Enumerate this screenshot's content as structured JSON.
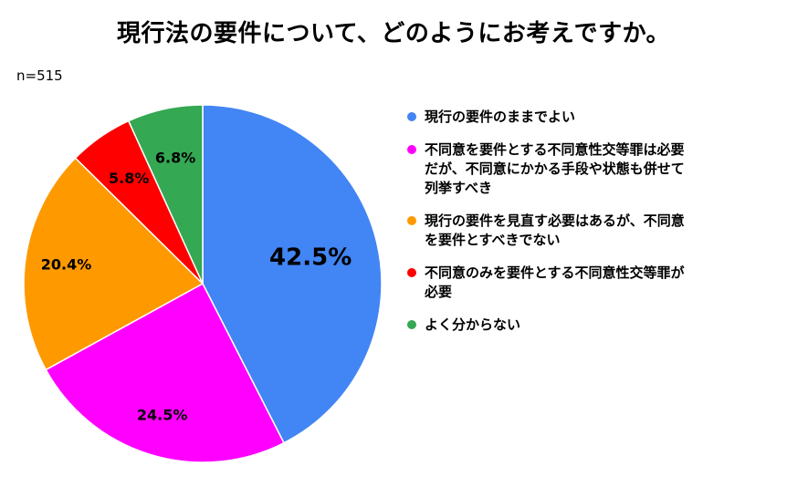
{
  "chart_data": {
    "type": "pie",
    "title": "現行法の要件について、どのようにお考えですか。",
    "note": "n=515",
    "categories": [
      "現行の要件のままでよい",
      "不同意を要件とする不同意性交等罪は必要\nだが、不同意にかかる手段や状態も併せて\n列挙すべき",
      "現行の要件を見直す必要はあるが、不同意\nを要件とすべきでない",
      "不同意のみを要件とする不同意性交等罪が\n必要",
      "よく分からない"
    ],
    "values": [
      42.5,
      24.5,
      20.4,
      5.8,
      6.8
    ],
    "data_labels": [
      "42.5%",
      "24.5%",
      "20.4%",
      "5.8%",
      "6.8%"
    ],
    "colors": [
      "#4285F4",
      "#FF00FF",
      "#FF9900",
      "#FF0000",
      "#34A853"
    ],
    "legend": "right"
  }
}
